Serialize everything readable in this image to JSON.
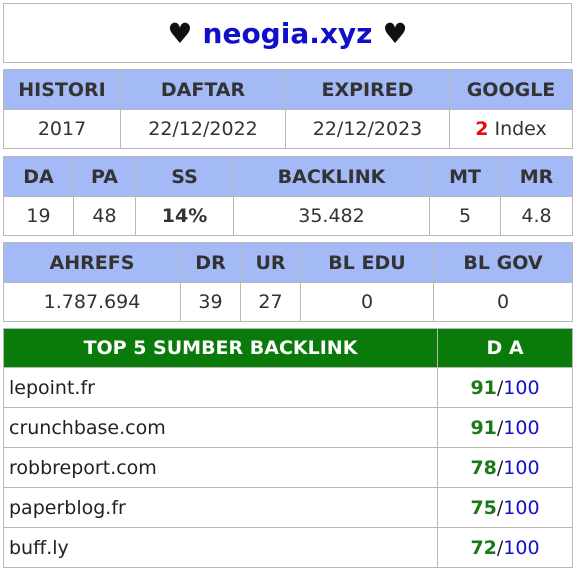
{
  "title": {
    "left_heart": "♥",
    "domain": "neogia.xyz",
    "right_heart": "♥"
  },
  "table1": {
    "headers": [
      "HISTORI",
      "DAFTAR",
      "EXPIRED",
      "GOOGLE"
    ],
    "values": {
      "histori": "2017",
      "daftar": "22/12/2022",
      "expired": "22/12/2023",
      "google_count": "2",
      "google_label": " Index"
    }
  },
  "table2": {
    "headers": [
      "DA",
      "PA",
      "SS",
      "BACKLINK",
      "MT",
      "MR"
    ],
    "values": [
      "19",
      "48",
      "14%",
      "35.482",
      "5",
      "4.8"
    ]
  },
  "table3": {
    "headers": [
      "AHREFS",
      "DR",
      "UR",
      "BL EDU",
      "BL GOV"
    ],
    "values": [
      "1.787.694",
      "39",
      "27",
      "0",
      "0"
    ]
  },
  "top_backlinks": {
    "header_left": "TOP 5 SUMBER BACKLINK",
    "header_right": "D A",
    "rows": [
      {
        "site": "lepoint.fr",
        "da": "91",
        "max": "100"
      },
      {
        "site": "crunchbase.com",
        "da": "91",
        "max": "100"
      },
      {
        "site": "robbreport.com",
        "da": "78",
        "max": "100"
      },
      {
        "site": "paperblog.fr",
        "da": "75",
        "max": "100"
      },
      {
        "site": "buff.ly",
        "da": "72",
        "max": "100"
      }
    ]
  },
  "colors": {
    "header_bg": "#a4baf6",
    "green_header": "#0a7a0a",
    "domain_blue": "#1010c8",
    "da_green": "#1a7a1a",
    "google_red": "#e01010",
    "ss_cyan": "#20c8c8"
  }
}
